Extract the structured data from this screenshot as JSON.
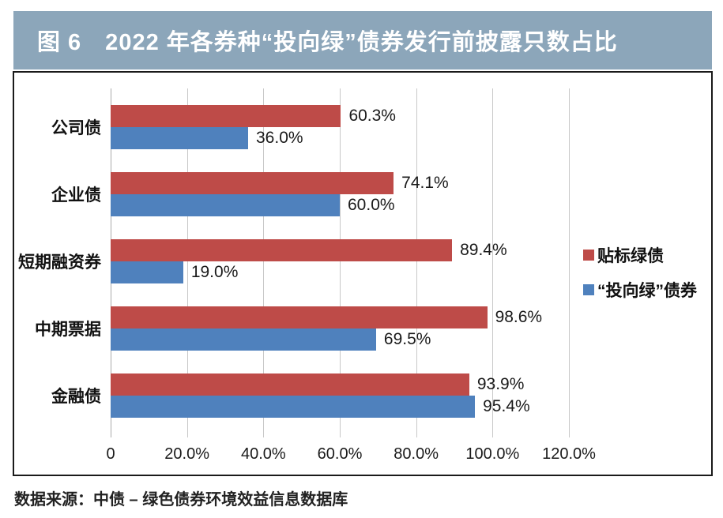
{
  "figure": {
    "title": "图 6　2022 年各券种“投向绿”债券发行前披露只数占比",
    "title_bg": "#8CA6BA",
    "title_color": "#FFFFFF",
    "source_note": "数据来源：中债 – 绿色债券环境效益信息数据库"
  },
  "chart_data": {
    "type": "bar",
    "orientation": "horizontal",
    "title": "2022 年各券种“投向绿”债券发行前披露只数占比",
    "categories": [
      "公司债",
      "企业债",
      "短期融资券",
      "中期票据",
      "金融债"
    ],
    "series": [
      {
        "name": "贴标绿债",
        "color": "#BE4B48",
        "values": [
          60.3,
          74.1,
          89.4,
          98.6,
          93.9
        ],
        "display": [
          "60.3%",
          "74.1%",
          "89.4%",
          "98.6%",
          "93.9%"
        ]
      },
      {
        "name": "“投向绿”债券",
        "color": "#4F81BD",
        "values": [
          36.0,
          60.0,
          19.0,
          69.5,
          95.4
        ],
        "display": [
          "36.0%",
          "60.0%",
          "19.0%",
          "69.5%",
          "95.4%"
        ]
      }
    ],
    "xlim": [
      0,
      120
    ],
    "x_tick_values": [
      0,
      20,
      40,
      60,
      80,
      100,
      120
    ],
    "x_tick_labels": [
      "0",
      "20.0%",
      "40.0%",
      "60.0%",
      "80.0%",
      "100.0%",
      "120.0%"
    ],
    "grid": "vertical-gridlines-on",
    "legend_position": "right"
  }
}
